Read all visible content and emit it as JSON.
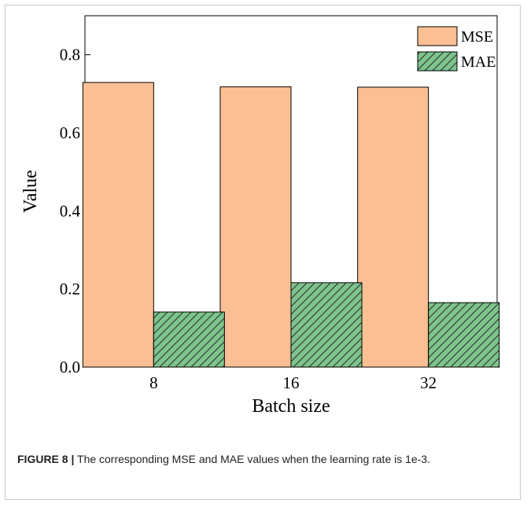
{
  "chart_data": {
    "type": "bar",
    "categories": [
      "8",
      "16",
      "32"
    ],
    "series": [
      {
        "name": "MSE",
        "values": [
          0.729,
          0.718,
          0.717
        ],
        "color": "#fbbf94",
        "pattern": "solid"
      },
      {
        "name": "MAE",
        "values": [
          0.141,
          0.216,
          0.165
        ],
        "color": "#7dc38c",
        "pattern": "diagonal-hatch"
      }
    ],
    "xlabel": "Batch size",
    "ylabel": "Value",
    "ylim": [
      0,
      0.9
    ],
    "yticks": [
      "0.0",
      "0.2",
      "0.4",
      "0.6",
      "0.8"
    ],
    "legend_position": "top-right",
    "grid": false
  },
  "caption": {
    "label": "FIGURE 8 |",
    "text": " The corresponding MSE and MAE values when the learning rate is 1e-3."
  }
}
